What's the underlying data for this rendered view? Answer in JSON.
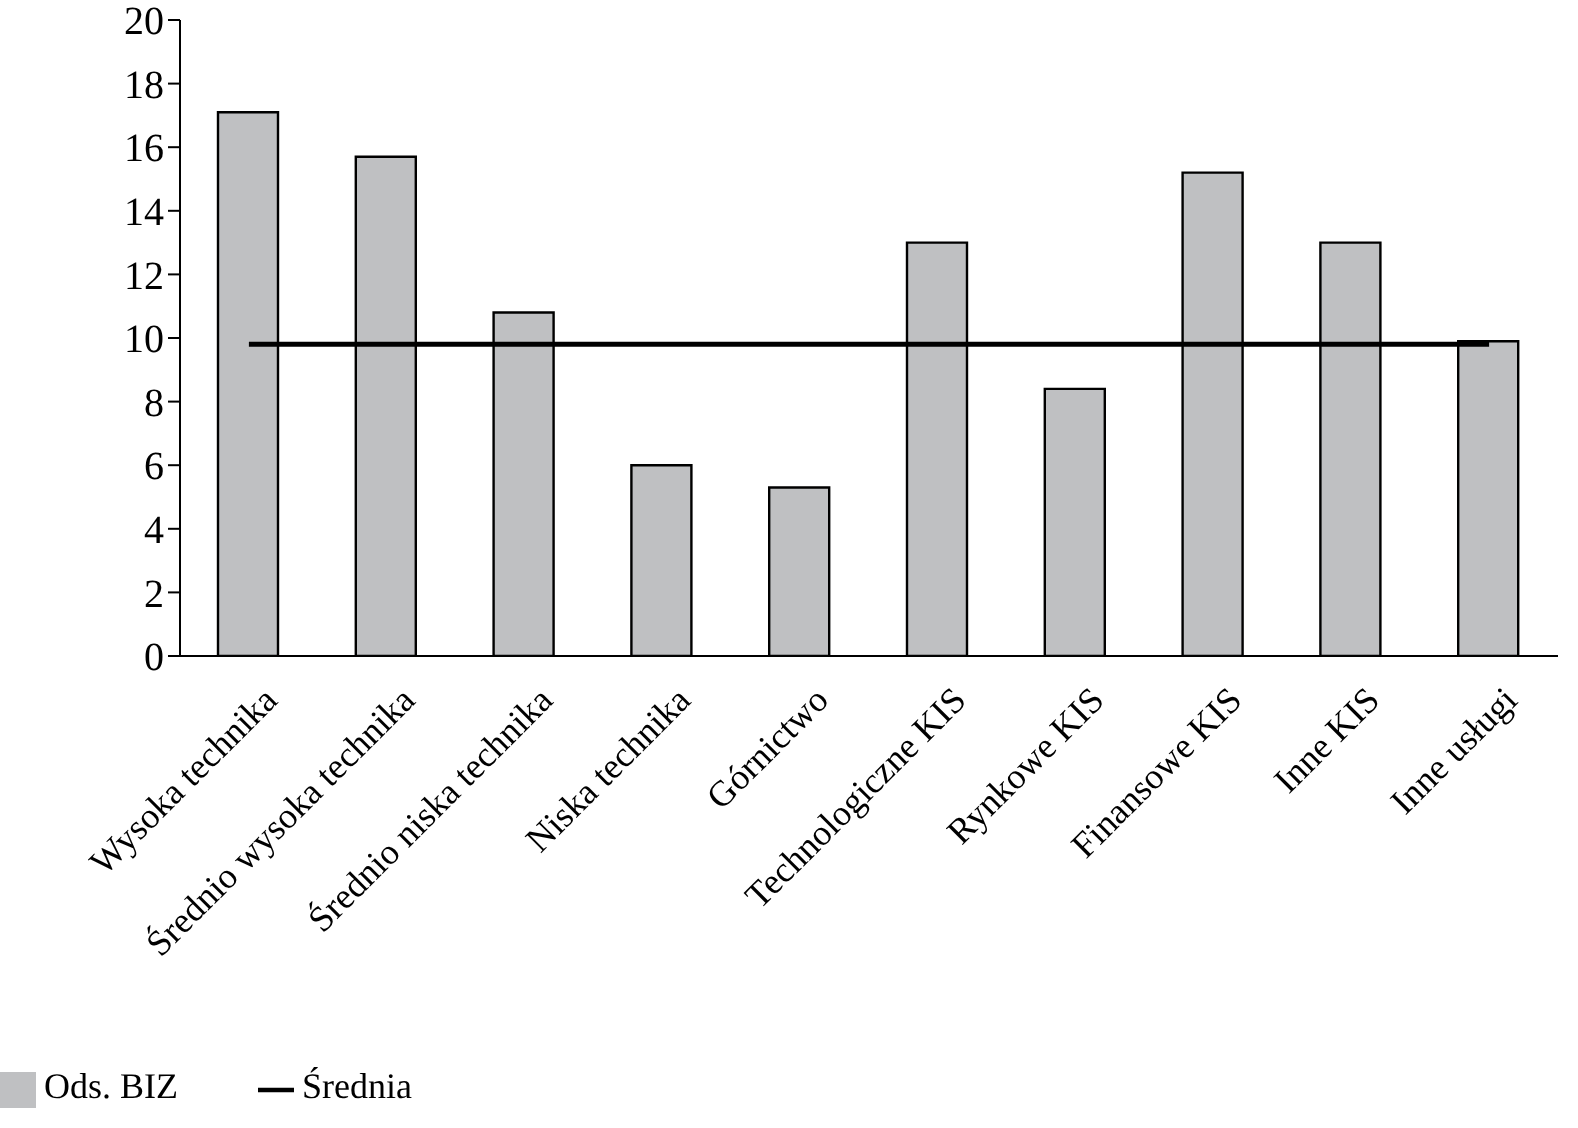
{
  "chart_data": {
    "type": "bar",
    "categories": [
      "Wysoka technika",
      "Średnio wysoka technika",
      "Średnio niska technika",
      "Niska technika",
      "Górnictwo",
      "Technologiczne KIS",
      "Rynkowe KIS",
      "Finansowe KIS",
      "Inne KIS",
      "Inne usługi"
    ],
    "series": [
      {
        "name": "Ods. BIZ",
        "color": "#bfc0c2",
        "values": [
          17.1,
          15.7,
          10.8,
          6.0,
          5.3,
          13.0,
          8.4,
          15.2,
          13.0,
          9.9
        ]
      },
      {
        "name": "Średnia",
        "type": "line",
        "color": "#000000",
        "values": [
          9.8,
          9.8,
          9.8,
          9.8,
          9.8,
          9.8,
          9.8,
          9.8,
          9.8,
          9.8
        ]
      }
    ],
    "ylim": [
      0,
      20
    ],
    "yticks": [
      0,
      2,
      4,
      6,
      8,
      10,
      12,
      14,
      16,
      18,
      20
    ],
    "grid": false,
    "legend": "bottom left",
    "marker": "none",
    "line_style": "solid"
  }
}
